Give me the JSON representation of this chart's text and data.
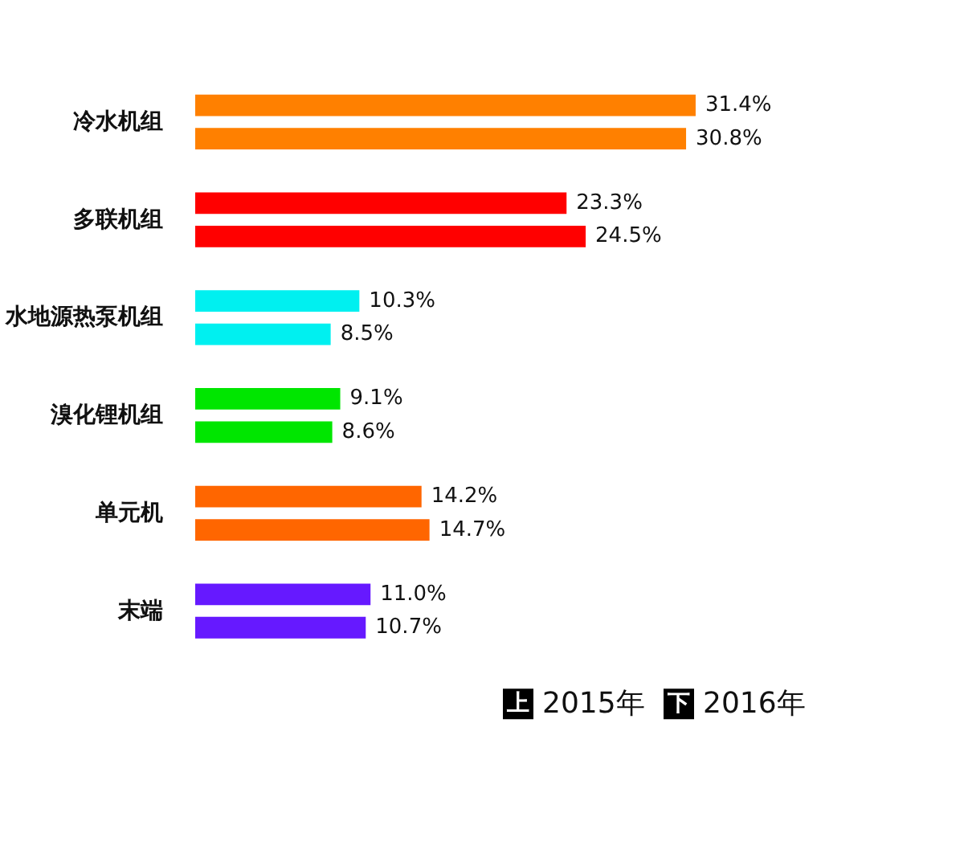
{
  "chart_data": {
    "type": "bar",
    "orientation": "horizontal",
    "categories": [
      "冷水机组",
      "多联机组",
      "水地源热泵机组",
      "溴化锂机组",
      "单元机",
      "末端"
    ],
    "series": [
      {
        "name": "2015年",
        "colors": [
          "#ff8000",
          "#ff0000",
          "#00f0f0",
          "#00e600",
          "#ff6600",
          "#6619ff"
        ],
        "values": [
          31.4,
          23.3,
          10.3,
          9.1,
          14.2,
          11.0
        ],
        "value_labels": [
          "31.4%",
          "23.3%",
          "10.3%",
          "9.1%",
          "14.2%",
          "11.0%"
        ]
      },
      {
        "name": "2016年",
        "colors": [
          "#ff8000",
          "#ff0000",
          "#00f0f0",
          "#00e600",
          "#ff6600",
          "#6619ff"
        ],
        "values": [
          30.8,
          24.5,
          8.5,
          8.6,
          14.7,
          10.7
        ],
        "value_labels": [
          "30.8%",
          "24.5%",
          "8.5%",
          "8.6%",
          "14.7%",
          "10.7%"
        ]
      }
    ],
    "tick_labels": "y",
    "legend": "bottom right",
    "annotations": [
      "上",
      "下"
    ]
  }
}
